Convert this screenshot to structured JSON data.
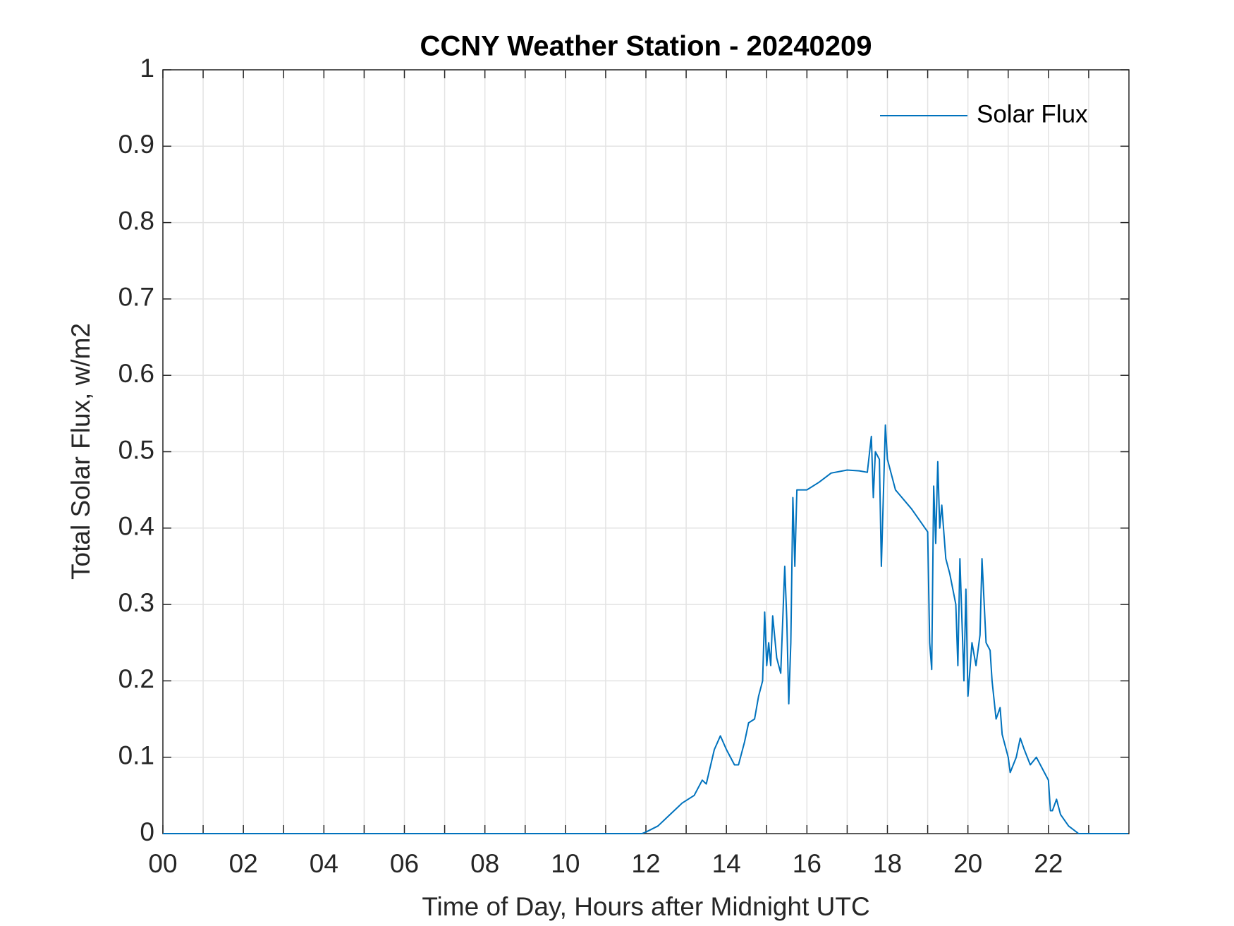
{
  "chart_data": {
    "type": "line",
    "title": "CCNY Weather Station - 20240209",
    "x_label": "Time of Day, Hours after Midnight UTC",
    "y_label": "Total Solar Flux, w/m2",
    "xlim": [
      0,
      24
    ],
    "ylim": [
      0,
      1
    ],
    "xticks": [
      {
        "value": 0,
        "label": "00"
      },
      {
        "value": 2,
        "label": "02"
      },
      {
        "value": 4,
        "label": "04"
      },
      {
        "value": 6,
        "label": "06"
      },
      {
        "value": 8,
        "label": "08"
      },
      {
        "value": 10,
        "label": "10"
      },
      {
        "value": 12,
        "label": "12"
      },
      {
        "value": 14,
        "label": "14"
      },
      {
        "value": 16,
        "label": "16"
      },
      {
        "value": 18,
        "label": "18"
      },
      {
        "value": 20,
        "label": "20"
      },
      {
        "value": 22,
        "label": "22"
      }
    ],
    "xminorticks": [
      1,
      3,
      5,
      7,
      9,
      11,
      13,
      15,
      17,
      19,
      21,
      23
    ],
    "yticks": [
      0,
      0.1,
      0.2,
      0.3,
      0.4,
      0.5,
      0.6,
      0.7,
      0.8,
      0.9,
      1
    ],
    "grid": true,
    "legend": "upper right",
    "x": [
      0,
      11.9,
      12.0,
      12.3,
      12.6,
      12.9,
      13.2,
      13.4,
      13.5,
      13.7,
      13.85,
      14.0,
      14.2,
      14.3,
      14.45,
      14.55,
      14.7,
      14.8,
      14.9,
      14.95,
      15.0,
      15.05,
      15.1,
      15.15,
      15.25,
      15.35,
      15.45,
      15.5,
      15.55,
      15.6,
      15.65,
      15.7,
      15.75,
      16.0,
      16.3,
      16.6,
      17.0,
      17.3,
      17.5,
      17.6,
      17.65,
      17.7,
      17.8,
      17.85,
      17.95,
      18.0,
      18.2,
      18.6,
      19.0,
      19.05,
      19.1,
      19.15,
      19.2,
      19.25,
      19.3,
      19.35,
      19.45,
      19.55,
      19.7,
      19.75,
      19.8,
      19.9,
      19.95,
      20.0,
      20.1,
      20.2,
      20.3,
      20.35,
      20.45,
      20.55,
      20.6,
      20.7,
      20.8,
      20.85,
      21.0,
      21.05,
      21.2,
      21.3,
      21.4,
      21.55,
      21.7,
      21.9,
      22.0,
      22.05,
      22.1,
      22.2,
      22.3,
      22.5,
      22.75,
      23.98
    ],
    "series": [
      {
        "name": "Solar Flux",
        "color": "#0072bd",
        "values": [
          0,
          0,
          0.002,
          0.01,
          0.025,
          0.04,
          0.05,
          0.07,
          0.065,
          0.11,
          0.128,
          0.11,
          0.09,
          0.09,
          0.12,
          0.145,
          0.15,
          0.18,
          0.2,
          0.29,
          0.22,
          0.25,
          0.22,
          0.285,
          0.23,
          0.21,
          0.35,
          0.28,
          0.17,
          0.25,
          0.44,
          0.35,
          0.45,
          0.45,
          0.46,
          0.472,
          0.476,
          0.475,
          0.473,
          0.52,
          0.44,
          0.5,
          0.49,
          0.35,
          0.535,
          0.49,
          0.45,
          0.425,
          0.395,
          0.25,
          0.215,
          0.455,
          0.38,
          0.487,
          0.4,
          0.43,
          0.36,
          0.34,
          0.3,
          0.22,
          0.36,
          0.2,
          0.32,
          0.18,
          0.25,
          0.22,
          0.26,
          0.36,
          0.25,
          0.24,
          0.2,
          0.15,
          0.165,
          0.13,
          0.1,
          0.08,
          0.1,
          0.125,
          0.11,
          0.09,
          0.1,
          0.08,
          0.07,
          0.03,
          0.03,
          0.045,
          0.025,
          0.01,
          0,
          0
        ]
      }
    ]
  }
}
